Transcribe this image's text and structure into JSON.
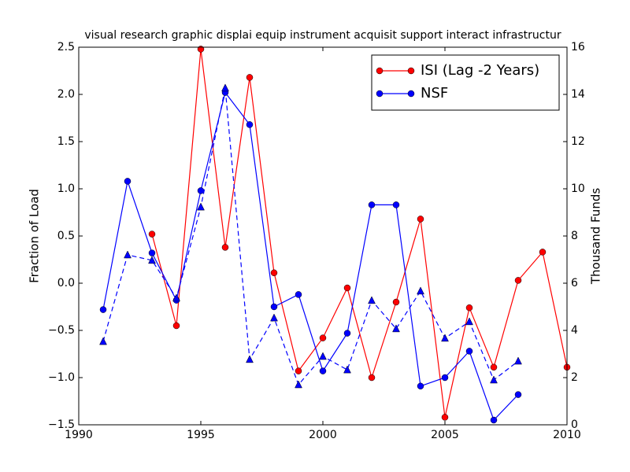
{
  "chart_data": {
    "type": "line",
    "title": "visual research graphic displai equip instrument acquisit support interact infrastructur",
    "ylabel": "Fraction of Load",
    "y2label": "Thousand Funds",
    "x": [
      1991,
      1992,
      1993,
      1994,
      1995,
      1996,
      1997,
      1998,
      1999,
      2000,
      2001,
      2002,
      2003,
      2004,
      2005,
      2006,
      2007,
      2008,
      2009,
      2010
    ],
    "series": [
      {
        "name": "ISI (Lag -2 Years)",
        "color": "#ff0000",
        "marker": "circle",
        "linestyle": "solid",
        "values": [
          null,
          null,
          0.52,
          -0.45,
          2.48,
          0.38,
          2.18,
          0.11,
          -0.93,
          -0.58,
          -0.05,
          -1.0,
          -0.2,
          0.68,
          -1.42,
          -0.26,
          -0.89,
          0.03,
          0.33,
          -0.89
        ]
      },
      {
        "name": "NSF",
        "color": "#0000ff",
        "marker": "circle",
        "linestyle": "solid",
        "values": [
          -0.28,
          1.08,
          0.32,
          -0.18,
          0.98,
          2.02,
          1.68,
          -0.25,
          -0.12,
          -0.93,
          -0.53,
          0.83,
          0.83,
          -1.09,
          -1.0,
          -0.72,
          -1.45,
          -1.18,
          null,
          null
        ]
      },
      {
        "color": "#0000ff",
        "marker": "triangle",
        "linestyle": "dashed",
        "axis": "y2",
        "values": [
          3.53,
          7.2,
          6.97,
          5.37,
          9.23,
          14.27,
          2.77,
          4.53,
          1.7,
          2.9,
          2.33,
          5.27,
          4.07,
          5.67,
          3.67,
          4.37,
          1.9,
          2.7,
          null,
          null
        ]
      }
    ],
    "xlim": [
      1990,
      2010
    ],
    "xticks": [
      1990,
      1995,
      2000,
      2005,
      2010
    ],
    "ylim": [
      -1.5,
      2.5
    ],
    "yticks": [
      {
        "value": -1.5,
        "label": "−1.5"
      },
      {
        "value": -1.0,
        "label": "−1.0"
      },
      {
        "value": -0.5,
        "label": "−0.5"
      },
      {
        "value": 0,
        "label": "0.0"
      },
      0.5,
      {
        "value": 1.0,
        "label": "1.0"
      },
      1.5,
      {
        "value": 2.0,
        "label": "2.0"
      },
      2.5
    ],
    "y2lim": [
      0,
      16
    ],
    "y2ticks": [
      0,
      2,
      4,
      6,
      8,
      10,
      12,
      14,
      16
    ],
    "grid": false,
    "legend": "upper right"
  }
}
